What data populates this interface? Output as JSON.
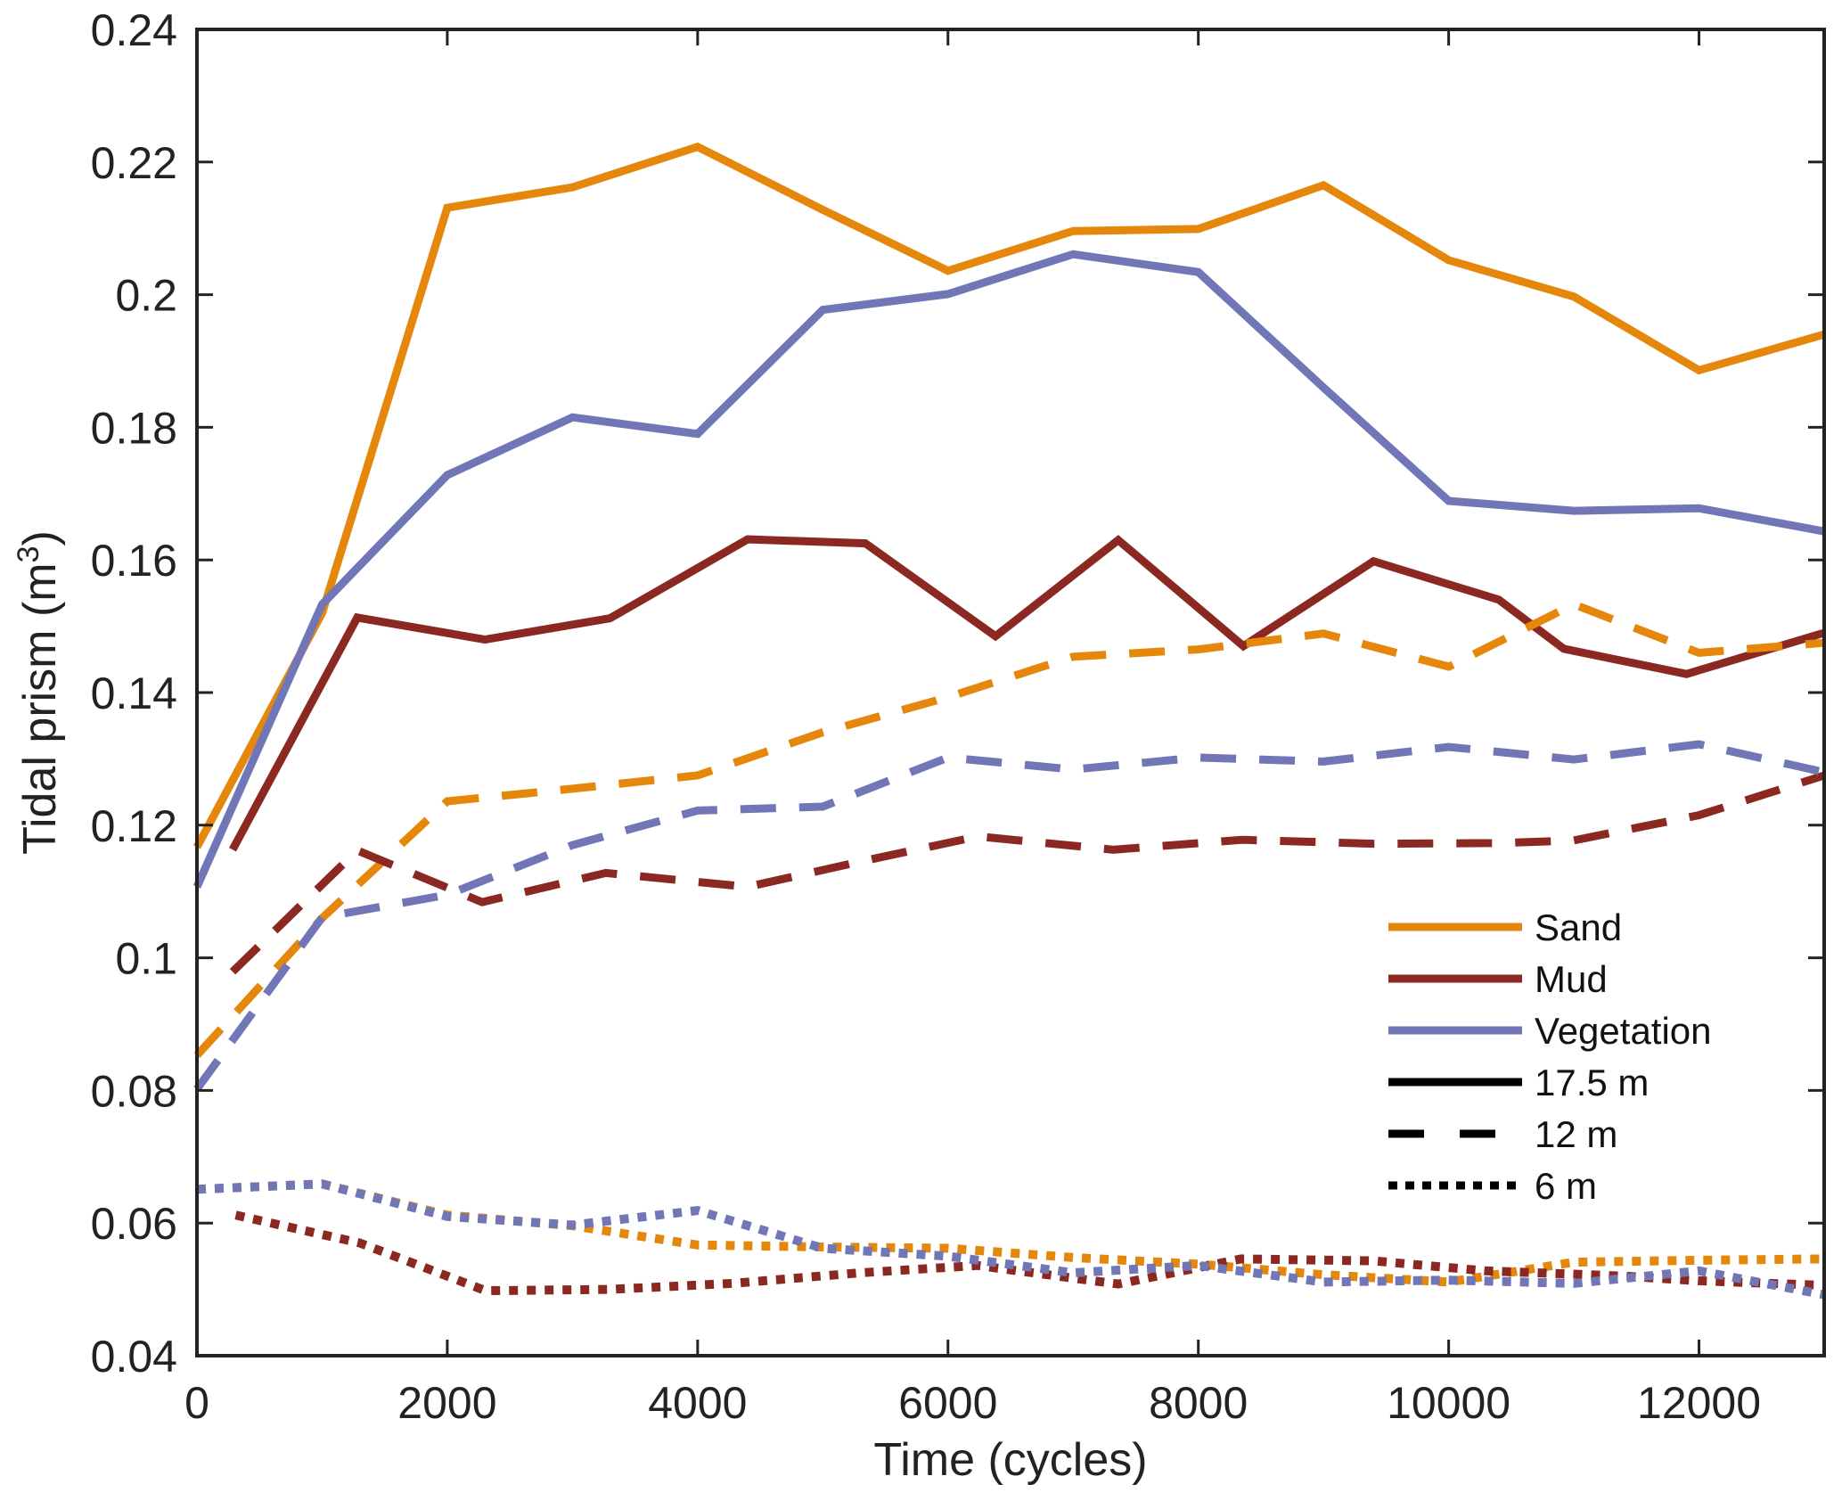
{
  "chart_data": {
    "type": "line",
    "title": "",
    "xlabel": "Time (cycles)",
    "ylabel": "Tidal prism (m",
    "ylabel_superscript": "3",
    "ylabel_suffix": ")",
    "xlim": [
      0,
      13000
    ],
    "ylim": [
      0.04,
      0.24
    ],
    "xticks": [
      0,
      2000,
      4000,
      6000,
      8000,
      10000,
      12000
    ],
    "xtick_labels": [
      "0",
      "2000",
      "4000",
      "6000",
      "8000",
      "10000",
      "12000"
    ],
    "yticks": [
      0.04,
      0.06,
      0.08,
      0.1,
      0.12,
      0.14,
      0.16,
      0.18,
      0.2,
      0.22,
      0.24
    ],
    "ytick_labels": [
      "0.04",
      "0.06",
      "0.08",
      "0.1",
      "0.12",
      "0.14",
      "0.16",
      "0.18",
      "0.2",
      "0.22",
      "0.24"
    ],
    "grid": false,
    "legend_position": "center-right",
    "colors": {
      "Sand": "#E5870B",
      "Mud": "#8C2822",
      "Vegetation": "#7076B6"
    },
    "legend": [
      {
        "label": "Sand",
        "color": "#E5870B",
        "style": "solid"
      },
      {
        "label": "Mud",
        "color": "#8C2822",
        "style": "solid"
      },
      {
        "label": "Vegetation",
        "color": "#7076B6",
        "style": "solid"
      },
      {
        "label": "17.5 m",
        "color": "#000000",
        "style": "solid"
      },
      {
        "label": "12 m",
        "color": "#000000",
        "style": "dashed"
      },
      {
        "label": "6 m",
        "color": "#000000",
        "style": "dotted"
      }
    ],
    "series": [
      {
        "name": "Sand 17.5 m",
        "material": "Sand",
        "depth": "17.5 m",
        "style": "solid",
        "x": [
          0,
          1000,
          2000,
          3000,
          4000,
          5000,
          6000,
          7000,
          8000,
          9000,
          10000,
          11000,
          12000,
          13000
        ],
        "y": [
          0.1167,
          0.152,
          0.2131,
          0.2162,
          0.2223,
          0.2128,
          0.2036,
          0.2096,
          0.2099,
          0.2165,
          0.2052,
          0.1997,
          0.1886,
          0.194
        ]
      },
      {
        "name": "Mud 17.5 m",
        "material": "Mud",
        "depth": "17.5 m",
        "style": "solid",
        "x": [
          285,
          1281,
          2300,
          3300,
          4400,
          5340,
          6380,
          7360,
          8360,
          9400,
          10400,
          10920,
          11900,
          13000
        ],
        "y": [
          0.1163,
          0.1513,
          0.148,
          0.1512,
          0.1631,
          0.1625,
          0.1485,
          0.163,
          0.147,
          0.1598,
          0.154,
          0.1466,
          0.1428,
          0.149
        ]
      },
      {
        "name": "Vegetation 17.5 m",
        "material": "Vegetation",
        "depth": "17.5 m",
        "style": "solid",
        "x": [
          0,
          1000,
          2000,
          3000,
          4000,
          5000,
          6000,
          7000,
          8000,
          9000,
          10000,
          11000,
          12000,
          13000
        ],
        "y": [
          0.1107,
          0.1533,
          0.1728,
          0.1815,
          0.179,
          0.1977,
          0.2001,
          0.2061,
          0.2034,
          0.186,
          0.1689,
          0.1674,
          0.1678,
          0.1643
        ]
      },
      {
        "name": "Sand 12 m",
        "material": "Sand",
        "depth": "12 m",
        "style": "dashed",
        "x": [
          0,
          1000,
          2000,
          3000,
          4000,
          5000,
          6000,
          7000,
          8000,
          9000,
          10000,
          11000,
          12000,
          13000
        ],
        "y": [
          0.0853,
          0.106,
          0.1236,
          0.1255,
          0.1275,
          0.134,
          0.1393,
          0.1454,
          0.1465,
          0.1489,
          0.1439,
          0.1533,
          0.146,
          0.1475
        ]
      },
      {
        "name": "Mud 12 m",
        "material": "Mud",
        "depth": "12 m",
        "style": "dashed",
        "x": [
          285,
          1281,
          2278,
          3267,
          4400,
          5300,
          6240,
          7320,
          8350,
          9400,
          10400,
          11000,
          12000,
          13000
        ],
        "y": [
          0.0979,
          0.1162,
          0.1084,
          0.1128,
          0.1107,
          0.1145,
          0.1183,
          0.1163,
          0.1178,
          0.1172,
          0.1173,
          0.1177,
          0.1215,
          0.1275
        ]
      },
      {
        "name": "Vegetation 12 m",
        "material": "Vegetation",
        "depth": "12 m",
        "style": "dashed",
        "x": [
          0,
          1000,
          2000,
          3000,
          4000,
          5000,
          6000,
          7000,
          8000,
          9000,
          10000,
          11000,
          12000,
          13000
        ],
        "y": [
          0.0802,
          0.1061,
          0.1095,
          0.117,
          0.1222,
          0.1228,
          0.1302,
          0.1284,
          0.1302,
          0.1296,
          0.1318,
          0.1299,
          0.1322,
          0.128
        ]
      },
      {
        "name": "Sand 6 m",
        "material": "Sand",
        "depth": "6 m",
        "style": "dotted",
        "x": [
          0,
          1000,
          2000,
          3000,
          4000,
          5000,
          6000,
          7000,
          8000,
          9000,
          10000,
          11000,
          12000,
          13000
        ],
        "y": [
          0.0651,
          0.0659,
          0.0612,
          0.0596,
          0.0567,
          0.0564,
          0.0562,
          0.0548,
          0.0538,
          0.0522,
          0.0511,
          0.0541,
          0.0544,
          0.0546
        ]
      },
      {
        "name": "Mud 6 m",
        "material": "Mud",
        "depth": "6 m",
        "style": "dotted",
        "x": [
          310,
          1300,
          2307,
          3300,
          4277,
          5300,
          6235,
          7359,
          8342,
          9400,
          10292,
          11400,
          12000,
          13000
        ],
        "y": [
          0.0612,
          0.057,
          0.0498,
          0.05,
          0.0509,
          0.0525,
          0.0536,
          0.0508,
          0.0546,
          0.0543,
          0.0528,
          0.052,
          0.0513,
          0.0506
        ]
      },
      {
        "name": "Vegetation 6 m",
        "material": "Vegetation",
        "depth": "6 m",
        "style": "dotted",
        "x": [
          0,
          1000,
          2000,
          3000,
          4000,
          5000,
          6000,
          7000,
          8000,
          9000,
          10000,
          11000,
          12000,
          13000
        ],
        "y": [
          0.0651,
          0.0659,
          0.061,
          0.0597,
          0.0619,
          0.0562,
          0.055,
          0.0525,
          0.0536,
          0.0511,
          0.0514,
          0.0509,
          0.0528,
          0.0492
        ]
      }
    ]
  }
}
